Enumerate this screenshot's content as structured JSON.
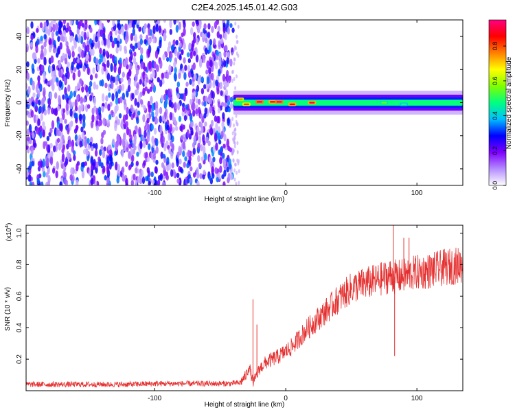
{
  "title": "C2E4.2025.145.01.42.G03",
  "chart_data": [
    {
      "type": "heatmap",
      "title": "C2E4.2025.145.01.42.G03",
      "xlabel": "Height of straight line (km)",
      "ylabel": "Frequency (Hz)",
      "xlim": [
        -198,
        135
      ],
      "ylim": [
        -50,
        50
      ],
      "xticks": [
        -100,
        0,
        100
      ],
      "xtick_labels": [
        "-100",
        "0",
        "100"
      ],
      "yticks": [
        -40,
        -20,
        0,
        20,
        40
      ],
      "ytick_labels": [
        "-40",
        "-20",
        "0",
        "20",
        "40"
      ],
      "noise_region_end_km": -40,
      "signal_center_hz": 0,
      "signal_halfwidth_hz": 4,
      "peak_track": [
        {
          "x": -35,
          "y": 2,
          "amp": 0.75
        },
        {
          "x": -30,
          "y": -1,
          "amp": 0.8
        },
        {
          "x": -20,
          "y": 0.5,
          "amp": 0.95
        },
        {
          "x": -10,
          "y": 0.5,
          "amp": 0.9
        },
        {
          "x": -5,
          "y": 0.5,
          "amp": 0.95
        },
        {
          "x": 5,
          "y": -1,
          "amp": 0.9
        },
        {
          "x": 20,
          "y": 0,
          "amp": 0.9
        },
        {
          "x": 75,
          "y": 0,
          "amp": 0.55
        },
        {
          "x": 90,
          "y": -1,
          "amp": 0.5
        }
      ],
      "colorbar": {
        "label": "Normalized spectral amplitude",
        "range": [
          0,
          0.95
        ],
        "ticks": [
          0.0,
          0.2,
          0.4,
          0.6,
          0.8
        ],
        "tick_labels": [
          "0.0",
          "0.2",
          "0.4",
          "0.6",
          "0.8"
        ],
        "colors": [
          "#ffffff",
          "#b48cff",
          "#7f00ff",
          "#0000ff",
          "#00c0ff",
          "#00ff80",
          "#80ff00",
          "#ffff00",
          "#ff8000",
          "#ff0000",
          "#ff0080"
        ]
      },
      "grid": false
    },
    {
      "type": "line",
      "xlabel": "Height of straight line (km)",
      "ylabel": "SNR (10 * v/v)",
      "y_multiplier_label": "(x10",
      "y_multiplier_exp": "4",
      "y_multiplier_close": ")",
      "xlim": [
        -198,
        135
      ],
      "ylim": [
        0,
        1.05
      ],
      "xticks": [
        -100,
        0,
        100
      ],
      "xtick_labels": [
        "-100",
        "0",
        "100"
      ],
      "yticks": [
        0.2,
        0.4,
        0.6,
        0.8,
        1.0
      ],
      "ytick_labels": [
        "0.2",
        "0.4",
        "0.6",
        "0.8",
        "1.0"
      ],
      "line_color": "#e53030",
      "series": [
        {
          "x": [
            -198,
            -180,
            -160,
            -140,
            -120,
            -100,
            -80,
            -60,
            -45,
            -35,
            -30,
            -28,
            -25,
            -22,
            -20,
            -15,
            -10,
            -5,
            0,
            5,
            10,
            15,
            20,
            25,
            30,
            40,
            50,
            60,
            70,
            80,
            85,
            90,
            100,
            110,
            120,
            135
          ],
          "y": [
            0.04,
            0.04,
            0.04,
            0.04,
            0.04,
            0.045,
            0.045,
            0.045,
            0.045,
            0.05,
            0.1,
            0.16,
            0.05,
            0.1,
            0.14,
            0.18,
            0.2,
            0.22,
            0.25,
            0.28,
            0.33,
            0.38,
            0.42,
            0.46,
            0.5,
            0.58,
            0.65,
            0.68,
            0.7,
            0.73,
            0.72,
            0.73,
            0.75,
            0.76,
            0.78,
            0.8
          ]
        }
      ],
      "spikes": [
        {
          "x": -25,
          "y": 0.58
        },
        {
          "x": -22,
          "y": 0.42
        },
        {
          "x": 82,
          "y": 1.05
        },
        {
          "x": 83,
          "y": 0.22
        },
        {
          "x": 90,
          "y": 0.97
        },
        {
          "x": 94,
          "y": 0.97
        }
      ],
      "grid": false
    }
  ]
}
